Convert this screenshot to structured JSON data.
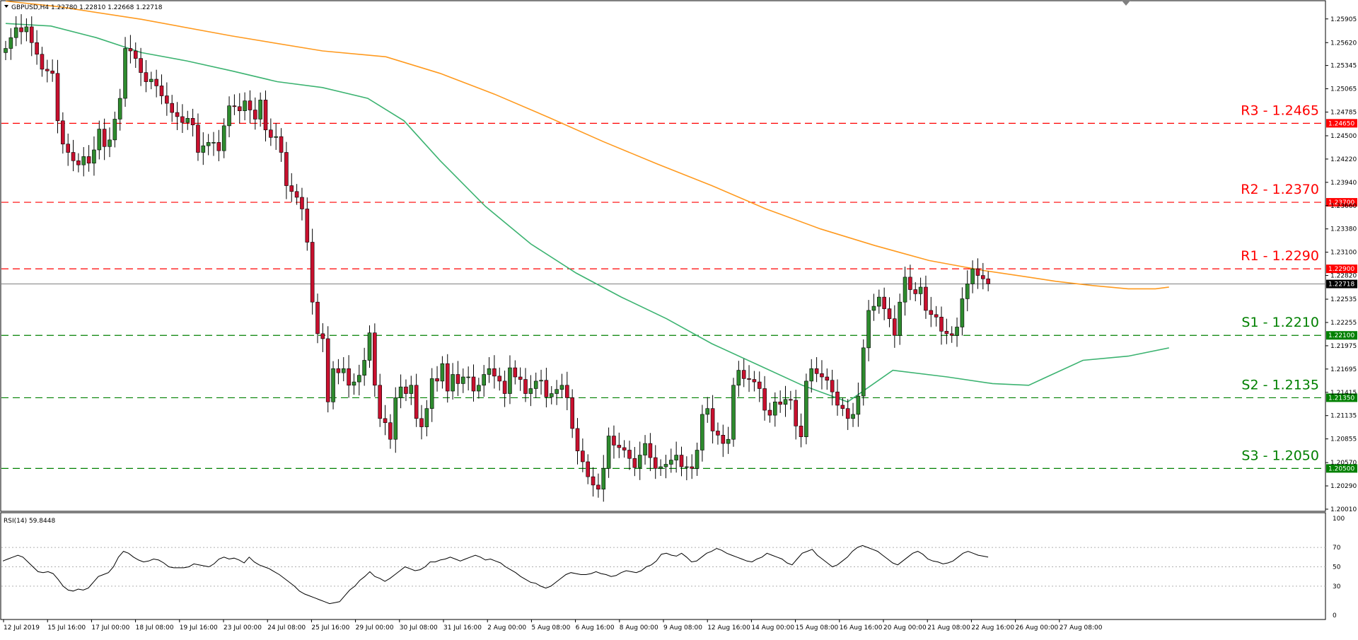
{
  "chart_data": {
    "type": "candlestick",
    "header": "GBPUSD,H4  1.22780 1.22810 1.22668 1.22718",
    "current_price_label": "1.22718",
    "price_axis": {
      "min": 1.2001,
      "max": 1.2609,
      "ticks": [
        "1.25905",
        "1.25620",
        "1.25345",
        "1.25065",
        "1.24785",
        "1.24500",
        "1.24220",
        "1.23940",
        "1.23660",
        "1.23380",
        "1.23100",
        "1.22820",
        "1.22535",
        "1.22255",
        "1.21975",
        "1.21695",
        "1.21415",
        "1.21135",
        "1.20855",
        "1.20570",
        "1.20290",
        "1.20010"
      ]
    },
    "x_axis_labels": [
      "12 Jul 2019",
      "15 Jul 16:00",
      "17 Jul 00:00",
      "18 Jul 08:00",
      "19 Jul 16:00",
      "23 Jul 00:00",
      "24 Jul 08:00",
      "25 Jul 16:00",
      "29 Jul 00:00",
      "30 Jul 08:00",
      "31 Jul 16:00",
      "2 Aug 00:00",
      "5 Aug 08:00",
      "6 Aug 16:00",
      "8 Aug 00:00",
      "9 Aug 08:00",
      "12 Aug 16:00",
      "14 Aug 00:00",
      "15 Aug 08:00",
      "16 Aug 16:00",
      "20 Aug 00:00",
      "21 Aug 08:00",
      "22 Aug 16:00",
      "26 Aug 00:00",
      "27 Aug 08:00"
    ],
    "levels": [
      {
        "label": "R3 - 1.2465",
        "value": 1.2465,
        "tag": "1.24650",
        "color": "#ff0000",
        "kind": "resistance"
      },
      {
        "label": "R2 - 1.2370",
        "value": 1.237,
        "tag": "1.23700",
        "color": "#ff0000",
        "kind": "resistance"
      },
      {
        "label": "R1 - 1.2290",
        "value": 1.229,
        "tag": "1.22900",
        "color": "#ff0000",
        "kind": "resistance"
      },
      {
        "label": "S1 - 1.2210",
        "value": 1.221,
        "tag": "1.22100",
        "color": "#008000",
        "kind": "support"
      },
      {
        "label": "S2 - 1.2135",
        "value": 1.2135,
        "tag": "1.21350",
        "color": "#008000",
        "kind": "support"
      },
      {
        "label": "S3 - 1.2050",
        "value": 1.205,
        "tag": "1.20500",
        "color": "#008000",
        "kind": "support"
      }
    ],
    "current_price": 1.22718,
    "candles_close": [
      1.2555,
      1.2568,
      1.258,
      1.2575,
      1.2581,
      1.2562,
      1.2548,
      1.253,
      1.2528,
      1.2525,
      1.2468,
      1.244,
      1.243,
      1.242,
      1.2415,
      1.2425,
      1.2417,
      1.2433,
      1.2458,
      1.2437,
      1.2445,
      1.247,
      1.2495,
      1.2555,
      1.2552,
      1.2543,
      1.2526,
      1.2515,
      1.2518,
      1.251,
      1.2498,
      1.2489,
      1.2478,
      1.2473,
      1.2466,
      1.2471,
      1.2463,
      1.243,
      1.2438,
      1.2442,
      1.2442,
      1.2432,
      1.2462,
      1.2486,
      1.2485,
      1.248,
      1.2492,
      1.2481,
      1.247,
      1.2493,
      1.2457,
      1.2448,
      1.2449,
      1.243,
      1.239,
      1.2383,
      1.2376,
      1.2362,
      1.2322,
      1.225,
      1.2212,
      1.2206,
      1.213,
      1.217,
      1.2165,
      1.217,
      1.215,
      1.2154,
      1.2162,
      1.218,
      1.2213,
      1.215,
      1.211,
      1.2105,
      1.2085,
      1.2135,
      1.2148,
      1.214,
      1.215,
      1.211,
      1.21,
      1.2122,
      1.2158,
      1.2155,
      1.2176,
      1.2143,
      1.2163,
      1.2152,
      1.216,
      1.216,
      1.2143,
      1.215,
      1.2163,
      1.217,
      1.2161,
      1.2155,
      1.214,
      1.2171,
      1.216,
      1.2157,
      1.214,
      1.2146,
      1.2155,
      1.2156,
      1.2136,
      1.214,
      1.2145,
      1.215,
      1.2135,
      1.2098,
      1.2071,
      1.2058,
      1.204,
      1.203,
      1.2025,
      1.205,
      1.2089,
      1.2078,
      1.2075,
      1.2072,
      1.2062,
      1.2051,
      1.2066,
      1.208,
      1.2063,
      1.205,
      1.2052,
      1.2055,
      1.206,
      1.2066,
      1.2052,
      1.2052,
      1.205,
      1.2072,
      1.2115,
      1.2122,
      1.2095,
      1.209,
      1.208,
      1.2085,
      1.215,
      1.2168,
      1.2158,
      1.2157,
      1.2154,
      1.2146,
      1.212,
      1.2114,
      1.213,
      1.2127,
      1.2133,
      1.2132,
      1.2101,
      1.2088,
      1.2155,
      1.217,
      1.2164,
      1.216,
      1.2156,
      1.2142,
      1.2126,
      1.2122,
      1.211,
      1.2115,
      1.2137,
      1.2195,
      1.224,
      1.2245,
      1.2256,
      1.2242,
      1.223,
      1.221,
      1.225,
      1.228,
      1.2265,
      1.226,
      1.2268,
      1.224,
      1.2235,
      1.2232,
      1.2215,
      1.2212,
      1.221,
      1.222,
      1.2254,
      1.2272,
      1.229,
      1.2282,
      1.2278,
      1.2272
    ],
    "ma_orange": [
      [
        0,
        1.2612
      ],
      [
        60,
        1.2605
      ],
      [
        150,
        1.259
      ],
      [
        250,
        1.257
      ],
      [
        350,
        1.2552
      ],
      [
        420,
        1.2545
      ],
      [
        480,
        1.2525
      ],
      [
        540,
        1.25
      ],
      [
        600,
        1.2472
      ],
      [
        660,
        1.2443
      ],
      [
        720,
        1.2416
      ],
      [
        780,
        1.239
      ],
      [
        840,
        1.2362
      ],
      [
        900,
        1.2338
      ],
      [
        960,
        1.2318
      ],
      [
        1020,
        1.23
      ],
      [
        1080,
        1.2288
      ],
      [
        1130,
        1.228
      ],
      [
        1160,
        1.2275
      ],
      [
        1200,
        1.227
      ],
      [
        1240,
        1.2266
      ],
      [
        1270,
        1.2266
      ],
      [
        1285,
        1.2268
      ]
    ],
    "ma_green": [
      [
        0,
        1.2585
      ],
      [
        50,
        1.2582
      ],
      [
        100,
        1.2568
      ],
      [
        150,
        1.255
      ],
      [
        200,
        1.254
      ],
      [
        250,
        1.2528
      ],
      [
        300,
        1.2515
      ],
      [
        350,
        1.2508
      ],
      [
        400,
        1.2495
      ],
      [
        440,
        1.2468
      ],
      [
        480,
        1.242
      ],
      [
        530,
        1.2365
      ],
      [
        580,
        1.232
      ],
      [
        630,
        1.2285
      ],
      [
        680,
        1.2256
      ],
      [
        730,
        1.223
      ],
      [
        780,
        1.22
      ],
      [
        830,
        1.2175
      ],
      [
        880,
        1.215
      ],
      [
        930,
        1.213
      ],
      [
        980,
        1.2168
      ],
      [
        1040,
        1.216
      ],
      [
        1090,
        1.2152
      ],
      [
        1130,
        1.215
      ],
      [
        1150,
        1.216
      ],
      [
        1190,
        1.218
      ],
      [
        1240,
        1.2185
      ],
      [
        1285,
        1.2195
      ]
    ],
    "rsi": {
      "label": "RSI(14) 59.8448",
      "ticks": [
        "100",
        "70",
        "50",
        "30",
        "0"
      ],
      "levels": [
        70,
        50,
        30
      ],
      "values": [
        56,
        58,
        60,
        62,
        60,
        55,
        50,
        45,
        44,
        45,
        43,
        37,
        30,
        26,
        25,
        27,
        26,
        28,
        34,
        40,
        42,
        44,
        50,
        60,
        66,
        64,
        60,
        57,
        55,
        56,
        58,
        57,
        54,
        50,
        49,
        49,
        49,
        50,
        53,
        52,
        51,
        50,
        53,
        58,
        60,
        58,
        59,
        57,
        54,
        60,
        55,
        52,
        50,
        48,
        45,
        42,
        38,
        34,
        30,
        25,
        22,
        20,
        18,
        16,
        14,
        12,
        13,
        14,
        20,
        26,
        30,
        36,
        40,
        45,
        40,
        38,
        35,
        38,
        42,
        46,
        50,
        48,
        46,
        47,
        50,
        55,
        55,
        57,
        58,
        60,
        58,
        56,
        58,
        60,
        62,
        60,
        57,
        58,
        56,
        54,
        50,
        47,
        44,
        40,
        37,
        34,
        33,
        30,
        28,
        30,
        34,
        38,
        42,
        44,
        43,
        42,
        42,
        43,
        45,
        43,
        42,
        40,
        41,
        44,
        46,
        45,
        44,
        46,
        50,
        52,
        56,
        63,
        64,
        62,
        61,
        64,
        60,
        55,
        56,
        60,
        64,
        66,
        69,
        67,
        64,
        62,
        60,
        58,
        56,
        55,
        58,
        60,
        64,
        62,
        60,
        58,
        54,
        52,
        58,
        64,
        66,
        68,
        62,
        58,
        54,
        50,
        52,
        56,
        60,
        66,
        70,
        72,
        70,
        68,
        66,
        62,
        58,
        54,
        52,
        56,
        60,
        64,
        66,
        63,
        58,
        56,
        55,
        53,
        54,
        56,
        60,
        64,
        66,
        64,
        62,
        61,
        60
      ]
    }
  }
}
